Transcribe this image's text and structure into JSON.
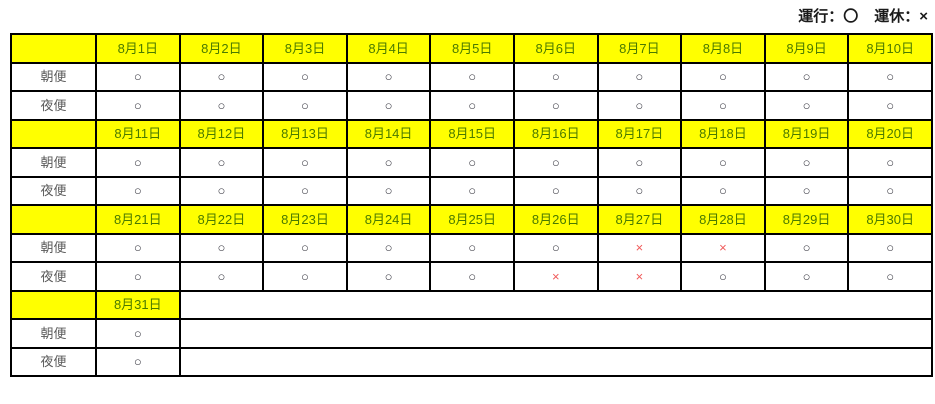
{
  "legend": {
    "operating": "運行：〇",
    "suspended": "運休：×"
  },
  "row_labels": {
    "morning": "朝便",
    "evening": "夜便"
  },
  "marks": {
    "operating": "○",
    "suspended": "×"
  },
  "colors": {
    "header_bg": "#ffff00",
    "date_text": "#4a7a00",
    "label_text": "#595959",
    "operating_mark": "#3d3d46",
    "suspended_mark": "#f05a5a",
    "border": "#000000",
    "legend_text": "#1a1a1a"
  },
  "blocks": [
    {
      "dates": [
        "8月1日",
        "8月2日",
        "8月3日",
        "8月4日",
        "8月5日",
        "8月6日",
        "8月7日",
        "8月8日",
        "8月9日",
        "8月10日"
      ],
      "morning": [
        "○",
        "○",
        "○",
        "○",
        "○",
        "○",
        "○",
        "○",
        "○",
        "○"
      ],
      "evening": [
        "○",
        "○",
        "○",
        "○",
        "○",
        "○",
        "○",
        "○",
        "○",
        "○"
      ]
    },
    {
      "dates": [
        "8月11日",
        "8月12日",
        "8月13日",
        "8月14日",
        "8月15日",
        "8月16日",
        "8月17日",
        "8月18日",
        "8月19日",
        "8月20日"
      ],
      "morning": [
        "○",
        "○",
        "○",
        "○",
        "○",
        "○",
        "○",
        "○",
        "○",
        "○"
      ],
      "evening": [
        "○",
        "○",
        "○",
        "○",
        "○",
        "○",
        "○",
        "○",
        "○",
        "○"
      ]
    },
    {
      "dates": [
        "8月21日",
        "8月22日",
        "8月23日",
        "8月24日",
        "8月25日",
        "8月26日",
        "8月27日",
        "8月28日",
        "8月29日",
        "8月30日"
      ],
      "morning": [
        "○",
        "○",
        "○",
        "○",
        "○",
        "○",
        "×",
        "×",
        "○",
        "○"
      ],
      "evening": [
        "○",
        "○",
        "○",
        "○",
        "○",
        "×",
        "×",
        "○",
        "○",
        "○"
      ]
    },
    {
      "dates": [
        "8月31日"
      ],
      "morning": [
        "○"
      ],
      "evening": [
        "○"
      ]
    }
  ]
}
